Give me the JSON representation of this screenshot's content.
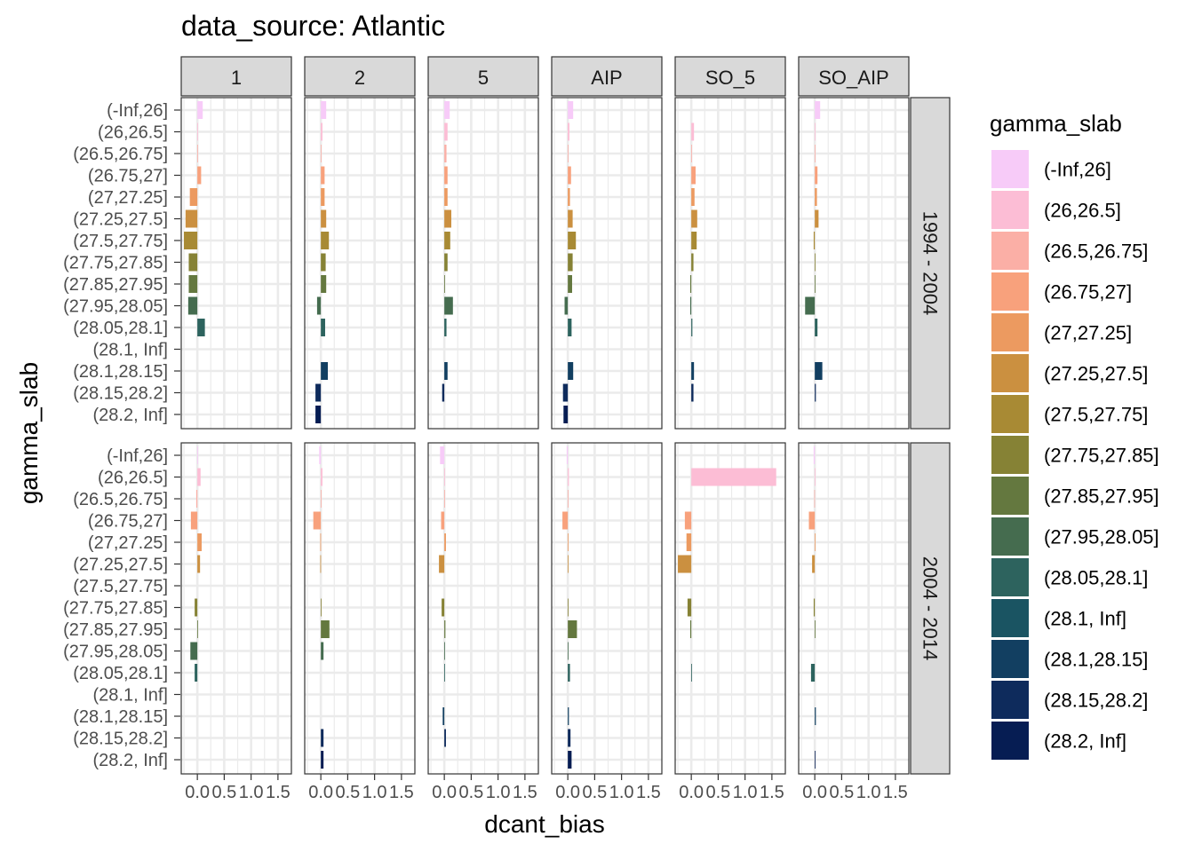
{
  "chart_data": {
    "type": "bar",
    "title": "data_source: Atlantic",
    "xlabel": "dcant_bias",
    "ylabel": "gamma_slab",
    "xlim": [
      -0.3,
      1.75
    ],
    "x_ticks": [
      0.0,
      0.5,
      1.0,
      1.5
    ],
    "x_tick_labels": [
      "0.0",
      "0.5",
      "1.0",
      "1.5"
    ],
    "legend_title": "gamma_slab",
    "legend_position": "right",
    "grid": true,
    "categories": [
      "(-Inf,26]",
      "(26,26.5]",
      "(26.5,26.75]",
      "(26.75,27]",
      "(27,27.25]",
      "(27.25,27.5]",
      "(27.5,27.75]",
      "(27.75,27.85]",
      "(27.85,27.95]",
      "(27.95,28.05]",
      "(28.05,28.1]",
      "(28.1, Inf]",
      "(28.1,28.15]",
      "(28.15,28.2]",
      "(28.2, Inf]"
    ],
    "colors": [
      "#F7CBF8",
      "#FCBDD5",
      "#FBAFA6",
      "#F8A17C",
      "#EC9A60",
      "#CB9040",
      "#A88A34",
      "#868235",
      "#64783F",
      "#456C4F",
      "#2D635E",
      "#1A5462",
      "#123F61",
      "#0E2B5C",
      "#061D53"
    ],
    "columns": [
      "1",
      "2",
      "5",
      "AIP",
      "SO_5",
      "SO_AIP"
    ],
    "rows": [
      "1994 - 2004",
      "2004 - 2014"
    ],
    "panels": [
      [
        [
          0.1,
          0.01,
          0.0,
          0.07,
          -0.14,
          -0.22,
          -0.25,
          -0.16,
          -0.16,
          -0.17,
          0.14,
          null,
          null,
          null,
          null
        ],
        [
          0.1,
          0.03,
          0.0,
          0.07,
          0.07,
          0.1,
          0.15,
          0.09,
          0.1,
          -0.07,
          0.08,
          null,
          0.13,
          -0.1,
          -0.1
        ],
        [
          0.1,
          0.06,
          0.04,
          0.06,
          0.06,
          0.13,
          0.11,
          0.06,
          0.01,
          0.16,
          0.04,
          null,
          0.06,
          -0.04,
          null
        ],
        [
          0.1,
          0.03,
          0.0,
          0.06,
          0.04,
          0.09,
          0.15,
          0.09,
          0.08,
          -0.06,
          0.07,
          null,
          0.1,
          -0.09,
          -0.08
        ],
        [
          null,
          0.05,
          0.01,
          0.08,
          0.06,
          0.11,
          0.1,
          0.04,
          -0.02,
          -0.02,
          0.02,
          null,
          0.05,
          0.04,
          null
        ],
        [
          0.1,
          0.01,
          0.0,
          0.05,
          0.04,
          0.07,
          -0.02,
          0.01,
          0.0,
          -0.18,
          0.05,
          null,
          0.14,
          0.02,
          null
        ]
      ],
      [
        [
          0.0,
          0.06,
          -0.02,
          -0.12,
          0.08,
          0.05,
          null,
          -0.05,
          0.01,
          -0.13,
          -0.05,
          null,
          null,
          null,
          null
        ],
        [
          -0.03,
          0.03,
          0.0,
          -0.14,
          -0.01,
          -0.01,
          null,
          0.01,
          0.16,
          0.05,
          null,
          null,
          null,
          0.05,
          0.05
        ],
        [
          -0.08,
          0.01,
          0.01,
          -0.06,
          0.03,
          -0.1,
          null,
          -0.05,
          0.02,
          0.0,
          0.01,
          null,
          -0.03,
          0.03,
          null
        ],
        [
          -0.02,
          0.02,
          0.0,
          -0.1,
          0.01,
          0.01,
          null,
          0.01,
          0.17,
          0.0,
          0.04,
          null,
          0.02,
          0.05,
          0.07
        ],
        [
          null,
          1.58,
          null,
          -0.12,
          -0.09,
          -0.25,
          null,
          -0.07,
          -0.02,
          null,
          0.01,
          null,
          null,
          null,
          null
        ],
        [
          -0.02,
          0.0,
          -0.01,
          -0.11,
          0.01,
          -0.05,
          null,
          -0.02,
          0.0,
          null,
          -0.07,
          null,
          0.02,
          null,
          0.01
        ]
      ]
    ]
  }
}
